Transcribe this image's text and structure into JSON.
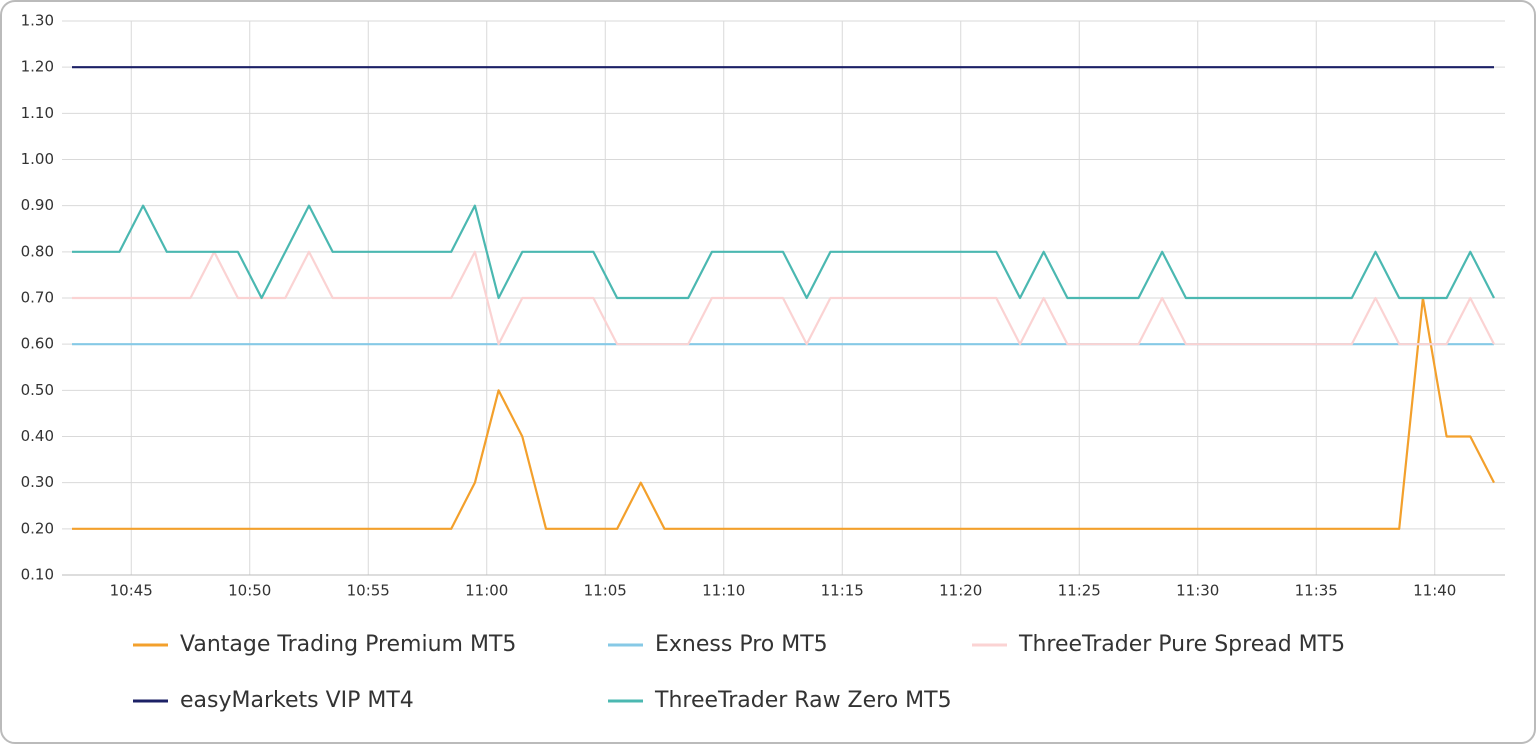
{
  "chart_data": {
    "type": "line",
    "xlim": [
      0,
      60
    ],
    "xticks": [
      {
        "value": 2.5,
        "label": "10:45"
      },
      {
        "value": 7.5,
        "label": "10:50"
      },
      {
        "value": 12.5,
        "label": "10:55"
      },
      {
        "value": 17.5,
        "label": "11:00"
      },
      {
        "value": 22.5,
        "label": "11:05"
      },
      {
        "value": 27.5,
        "label": "11:10"
      },
      {
        "value": 32.5,
        "label": "11:15"
      },
      {
        "value": 37.5,
        "label": "11:20"
      },
      {
        "value": 42.5,
        "label": "11:25"
      },
      {
        "value": 47.5,
        "label": "11:30"
      },
      {
        "value": 52.5,
        "label": "11:35"
      },
      {
        "value": 57.5,
        "label": "11:40"
      }
    ],
    "ylim": [
      0.1,
      1.3
    ],
    "yticks": [
      {
        "value": 0.1,
        "label": "0.10"
      },
      {
        "value": 0.2,
        "label": "0.20"
      },
      {
        "value": 0.3,
        "label": "0.30"
      },
      {
        "value": 0.4,
        "label": "0.40"
      },
      {
        "value": 0.5,
        "label": "0.50"
      },
      {
        "value": 0.6,
        "label": "0.60"
      },
      {
        "value": 0.7,
        "label": "0.70"
      },
      {
        "value": 0.8,
        "label": "0.80"
      },
      {
        "value": 0.9,
        "label": "0.90"
      },
      {
        "value": 1.0,
        "label": "1.00"
      },
      {
        "value": 1.1,
        "label": "1.10"
      },
      {
        "value": 1.2,
        "label": "1.20"
      },
      {
        "value": 1.3,
        "label": "1.30"
      }
    ],
    "grid": true,
    "legend": "bottom",
    "series": [
      {
        "name": "Vantage Trading Premium MT5",
        "color": "#f3a02c",
        "values": [
          0.2,
          0.2,
          0.2,
          0.2,
          0.2,
          0.2,
          0.2,
          0.2,
          0.2,
          0.2,
          0.2,
          0.2,
          0.2,
          0.2,
          0.2,
          0.2,
          0.2,
          0.3,
          0.5,
          0.4,
          0.2,
          0.2,
          0.2,
          0.2,
          0.3,
          0.2,
          0.2,
          0.2,
          0.2,
          0.2,
          0.2,
          0.2,
          0.2,
          0.2,
          0.2,
          0.2,
          0.2,
          0.2,
          0.2,
          0.2,
          0.2,
          0.2,
          0.2,
          0.2,
          0.2,
          0.2,
          0.2,
          0.2,
          0.2,
          0.2,
          0.2,
          0.2,
          0.2,
          0.2,
          0.2,
          0.2,
          0.2,
          0.7,
          0.4,
          0.4,
          0.3
        ]
      },
      {
        "name": "Exness Pro MT5",
        "color": "#86c9e6",
        "values": [
          0.6,
          0.6,
          0.6,
          0.6,
          0.6,
          0.6,
          0.6,
          0.6,
          0.6,
          0.6,
          0.6,
          0.6,
          0.6,
          0.6,
          0.6,
          0.6,
          0.6,
          0.6,
          0.6,
          0.6,
          0.6,
          0.6,
          0.6,
          0.6,
          0.6,
          0.6,
          0.6,
          0.6,
          0.6,
          0.6,
          0.6,
          0.6,
          0.6,
          0.6,
          0.6,
          0.6,
          0.6,
          0.6,
          0.6,
          0.6,
          0.6,
          0.6,
          0.6,
          0.6,
          0.6,
          0.6,
          0.6,
          0.6,
          0.6,
          0.6,
          0.6,
          0.6,
          0.6,
          0.6,
          0.6,
          0.6,
          0.6,
          0.6,
          0.6,
          0.6,
          0.6
        ]
      },
      {
        "name": "ThreeTrader Pure Spread MT5",
        "color": "#fbd3d3",
        "values": [
          0.7,
          0.7,
          0.7,
          0.7,
          0.7,
          0.7,
          0.8,
          0.7,
          0.7,
          0.7,
          0.8,
          0.7,
          0.7,
          0.7,
          0.7,
          0.7,
          0.7,
          0.8,
          0.6,
          0.7,
          0.7,
          0.7,
          0.7,
          0.6,
          0.6,
          0.6,
          0.6,
          0.7,
          0.7,
          0.7,
          0.7,
          0.6,
          0.7,
          0.7,
          0.7,
          0.7,
          0.7,
          0.7,
          0.7,
          0.7,
          0.6,
          0.7,
          0.6,
          0.6,
          0.6,
          0.6,
          0.7,
          0.6,
          0.6,
          0.6,
          0.6,
          0.6,
          0.6,
          0.6,
          0.6,
          0.7,
          0.6,
          0.6,
          0.6,
          0.7,
          0.6
        ]
      },
      {
        "name": "easyMarkets VIP MT4",
        "color": "#1c2166",
        "values": [
          1.2,
          1.2,
          1.2,
          1.2,
          1.2,
          1.2,
          1.2,
          1.2,
          1.2,
          1.2,
          1.2,
          1.2,
          1.2,
          1.2,
          1.2,
          1.2,
          1.2,
          1.2,
          1.2,
          1.2,
          1.2,
          1.2,
          1.2,
          1.2,
          1.2,
          1.2,
          1.2,
          1.2,
          1.2,
          1.2,
          1.2,
          1.2,
          1.2,
          1.2,
          1.2,
          1.2,
          1.2,
          1.2,
          1.2,
          1.2,
          1.2,
          1.2,
          1.2,
          1.2,
          1.2,
          1.2,
          1.2,
          1.2,
          1.2,
          1.2,
          1.2,
          1.2,
          1.2,
          1.2,
          1.2,
          1.2,
          1.2,
          1.2,
          1.2,
          1.2,
          1.2
        ]
      },
      {
        "name": "ThreeTrader Raw Zero MT5",
        "color": "#4bb8b1",
        "values": [
          0.8,
          0.8,
          0.8,
          0.9,
          0.8,
          0.8,
          0.8,
          0.8,
          0.7,
          0.8,
          0.9,
          0.8,
          0.8,
          0.8,
          0.8,
          0.8,
          0.8,
          0.9,
          0.7,
          0.8,
          0.8,
          0.8,
          0.8,
          0.7,
          0.7,
          0.7,
          0.7,
          0.8,
          0.8,
          0.8,
          0.8,
          0.7,
          0.8,
          0.8,
          0.8,
          0.8,
          0.8,
          0.8,
          0.8,
          0.8,
          0.7,
          0.8,
          0.7,
          0.7,
          0.7,
          0.7,
          0.8,
          0.7,
          0.7,
          0.7,
          0.7,
          0.7,
          0.7,
          0.7,
          0.7,
          0.8,
          0.7,
          0.7,
          0.7,
          0.8,
          0.7
        ]
      }
    ]
  }
}
